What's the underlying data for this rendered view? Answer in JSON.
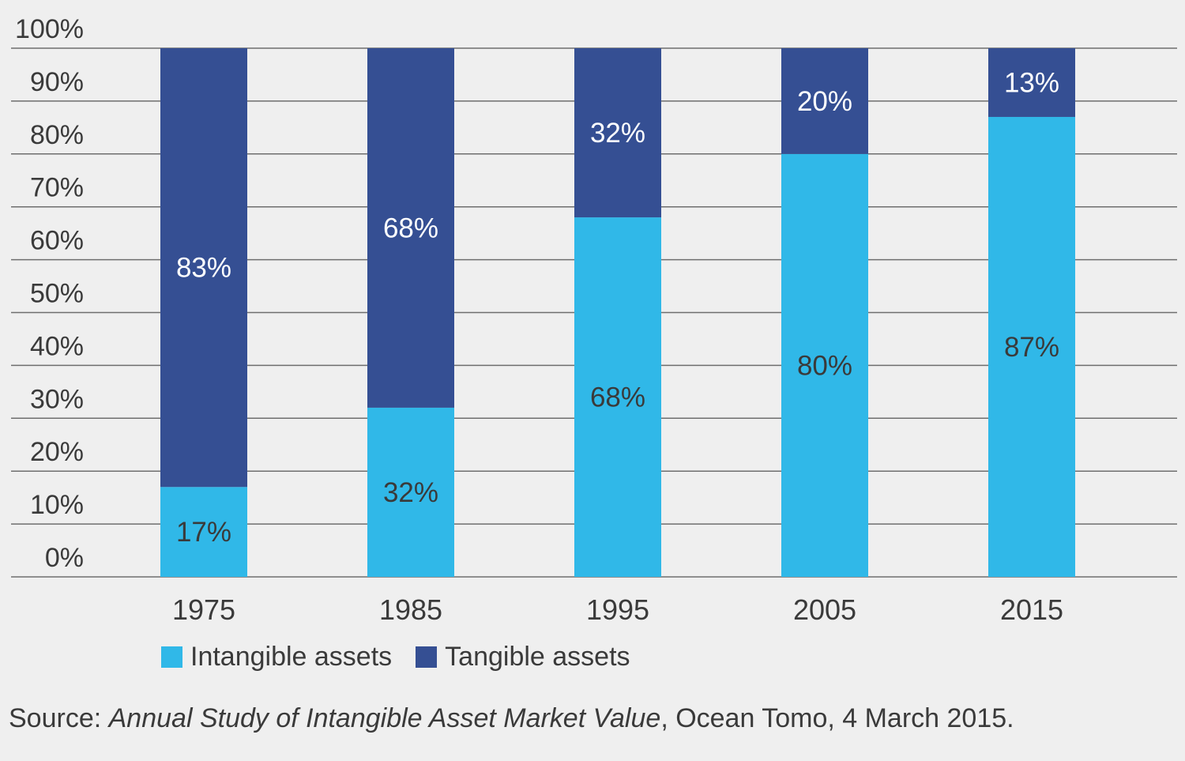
{
  "chart_data": {
    "type": "bar",
    "stacked": true,
    "categories": [
      "1975",
      "1985",
      "1995",
      "2005",
      "2015"
    ],
    "series": [
      {
        "name": "Intangible assets",
        "values": [
          17,
          32,
          68,
          80,
          87
        ],
        "labels": [
          "17%",
          "32%",
          "68%",
          "80%",
          "87%"
        ],
        "color": "#30b8e8",
        "label_color": "#3a3a3a"
      },
      {
        "name": "Tangible assets",
        "values": [
          83,
          68,
          32,
          20,
          13
        ],
        "labels": [
          "83%",
          "68%",
          "32%",
          "20%",
          "13%"
        ],
        "color": "#354f93",
        "label_color": "#ffffff"
      }
    ],
    "y_ticks": [
      "0%",
      "10%",
      "20%",
      "30%",
      "40%",
      "50%",
      "60%",
      "70%",
      "80%",
      "90%",
      "100%"
    ],
    "ylim": [
      0,
      100
    ],
    "grid": true,
    "legend_position": "bottom-left",
    "title": "",
    "xlabel": "",
    "ylabel": ""
  },
  "source": {
    "prefix": "Source: ",
    "title": "Annual Study of Intangible Asset Market Value",
    "suffix": ", Ocean Tomo, 4 March 2015."
  }
}
